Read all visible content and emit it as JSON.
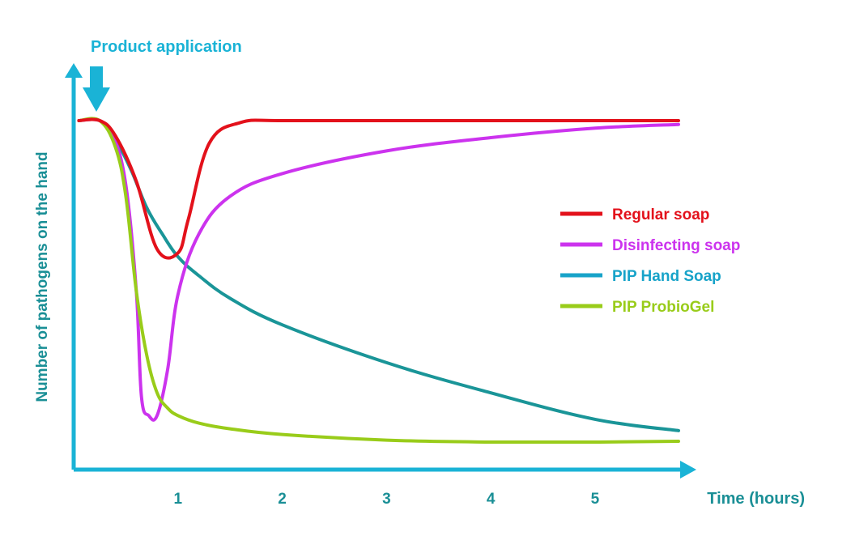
{
  "colors": {
    "axis": "#1ab3d6",
    "axis_text": "#1a8f96",
    "regular_soap": "#e3111b",
    "disinfecting_soap": "#cc33ee",
    "pip_hand_soap": "#17a3c9",
    "pip_hand_soap_line": "#1a9598",
    "pip_probiogel": "#99cc1a"
  },
  "chart_data": {
    "type": "line",
    "title": "",
    "xlabel": "Time (hours)",
    "ylabel": "Number of pathogens on the hand",
    "xlim": [
      0,
      5.8
    ],
    "ylim": [
      0,
      100
    ],
    "x_ticks": [
      1,
      2,
      3,
      4,
      5
    ],
    "x_tick_labels": [
      "1",
      "2",
      "3",
      "4",
      "5"
    ],
    "y_ticks_shown": false,
    "grid": false,
    "legend_position": "right",
    "annotation": {
      "text": "Product application",
      "x": 0.2,
      "marker": "down-arrow"
    },
    "series": [
      {
        "name": "Regular soap",
        "color_key": "regular_soap",
        "x": [
          0.05,
          0.25,
          0.4,
          0.6,
          0.8,
          1.0,
          1.1,
          1.3,
          1.6,
          2.0,
          3.0,
          4.0,
          5.0,
          5.8
        ],
        "y": [
          100,
          100,
          96,
          84,
          66,
          65,
          74,
          94,
          99.5,
          100,
          100,
          100,
          100,
          100
        ]
      },
      {
        "name": "Disinfecting soap",
        "color_key": "disinfecting_soap",
        "x": [
          0.05,
          0.25,
          0.38,
          0.5,
          0.6,
          0.65,
          0.72,
          0.8,
          0.9,
          1.0,
          1.2,
          1.5,
          2.0,
          3.0,
          4.0,
          5.0,
          5.8
        ],
        "y": [
          100,
          100,
          96,
          83,
          55,
          27,
          22,
          22,
          34,
          54,
          70,
          80,
          86,
          92,
          95.5,
          98,
          99
        ]
      },
      {
        "name": "PIP Hand Soap",
        "color_key": "pip_hand_soap",
        "x": [
          0.05,
          0.25,
          0.4,
          0.55,
          0.7,
          0.85,
          1.0,
          1.2,
          1.5,
          2.0,
          3.0,
          4.0,
          5.0,
          5.8
        ],
        "y": [
          100,
          100,
          95,
          87,
          77,
          70,
          64,
          59,
          53,
          46,
          36,
          28,
          21,
          18
        ]
      },
      {
        "name": "PIP ProbioGel",
        "color_key": "pip_probiogel",
        "x": [
          0.05,
          0.25,
          0.4,
          0.5,
          0.6,
          0.7,
          0.8,
          0.9,
          1.0,
          1.2,
          1.5,
          2.0,
          3.0,
          4.0,
          5.0,
          5.8
        ],
        "y": [
          100,
          100,
          93,
          80,
          55,
          38,
          28,
          24,
          22,
          20,
          18.5,
          17,
          15.5,
          15,
          15,
          15.2
        ]
      }
    ]
  }
}
